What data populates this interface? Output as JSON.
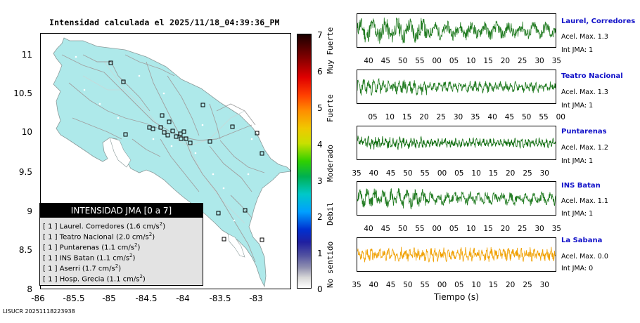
{
  "map": {
    "title": "Intensidad calculada el 2025/11/18_04:39:36_PM",
    "lat_ticks": [
      "11",
      "10.5",
      "10",
      "9.5",
      "9",
      "8.5",
      "8"
    ],
    "lon_ticks": [
      "-86",
      "-85.5",
      "-85",
      "-84.5",
      "-84",
      "-83.5",
      "-83"
    ],
    "colors": {
      "land": "#aee9ea",
      "roads": "#a0a0a0",
      "station_marker": "#000000"
    }
  },
  "legend": {
    "header": "INTENSIDAD JMA [0 a 7]",
    "unit_superscript": "2",
    "rows": [
      {
        "bracket": "[ 1 ]",
        "text": "Laurel. Corredores (1.6 cm/s",
        "close": ")"
      },
      {
        "bracket": "[ 1 ]",
        "text": "Teatro Nacional (2.0 cm/s",
        "close": ")"
      },
      {
        "bracket": "[ 1 ]",
        "text": "Puntarenas (1.1 cm/s",
        "close": ")"
      },
      {
        "bracket": "[ 1 ]",
        "text": "INS Batan (1.1 cm/s",
        "close": ")"
      },
      {
        "bracket": "[ 1 ]",
        "text": "Aserri (1.7 cm/s",
        "close": ")"
      },
      {
        "bracket": "[ 1 ]",
        "text": "Hosp. Grecia (1.1 cm/s",
        "close": ")"
      }
    ]
  },
  "scale": {
    "numbers": [
      "7",
      "6",
      "5",
      "4",
      "3",
      "2",
      "1",
      "0"
    ],
    "words": [
      "Muy Fuerte",
      "Fuerte",
      "Moderado",
      "Debil",
      "No sentido"
    ]
  },
  "stations": [
    {
      "name": "Laurel, Corredores",
      "acel": "Acel. Max. 1.3",
      "int": "Int JMA: 1",
      "color": "#1f7a1f",
      "ticks": [
        "40",
        "45",
        "50",
        "55",
        "00",
        "05",
        "10",
        "15",
        "20",
        "25",
        "30",
        "35"
      ],
      "seed": 11,
      "amp": 0.85,
      "freq": 0.45
    },
    {
      "name": "Teatro Nacional",
      "acel": "Acel. Max. 1.3",
      "int": "Int JMA: 1",
      "color": "#1f7a1f",
      "ticks": [
        "05",
        "10",
        "15",
        "20",
        "25",
        "30",
        "35",
        "40",
        "45",
        "50",
        "55",
        "00"
      ],
      "seed": 23,
      "amp": 0.55,
      "freq": 1.1
    },
    {
      "name": "Puntarenas",
      "acel": "Acel. Max. 1.2",
      "int": "Int JMA: 1",
      "color": "#0b6b0b",
      "ticks": [
        "35",
        "40",
        "45",
        "50",
        "55",
        "00",
        "05",
        "10",
        "15",
        "20",
        "25",
        "30"
      ],
      "seed": 37,
      "amp": 0.45,
      "freq": 1.6
    },
    {
      "name": "INS Batan",
      "acel": "Acel. Max. 1.1",
      "int": "Int JMA: 1",
      "color": "#1f7a1f",
      "ticks": [
        "40",
        "45",
        "50",
        "55",
        "00",
        "05",
        "10",
        "15",
        "20",
        "25",
        "30",
        "35"
      ],
      "seed": 51,
      "amp": 0.65,
      "freq": 0.7
    },
    {
      "name": "La Sabana",
      "acel": "Acel. Max. 0.0",
      "int": "Int JMA: 0",
      "color": "#f0a000",
      "ticks": [
        "35",
        "40",
        "45",
        "50",
        "55",
        "00",
        "05",
        "10",
        "15",
        "20",
        "25",
        "30"
      ],
      "seed": 67,
      "amp": 0.55,
      "freq": 1.3
    }
  ],
  "time_axis_label": "Tiempo (s)",
  "footer_id": "LISUCR 20251118223938"
}
